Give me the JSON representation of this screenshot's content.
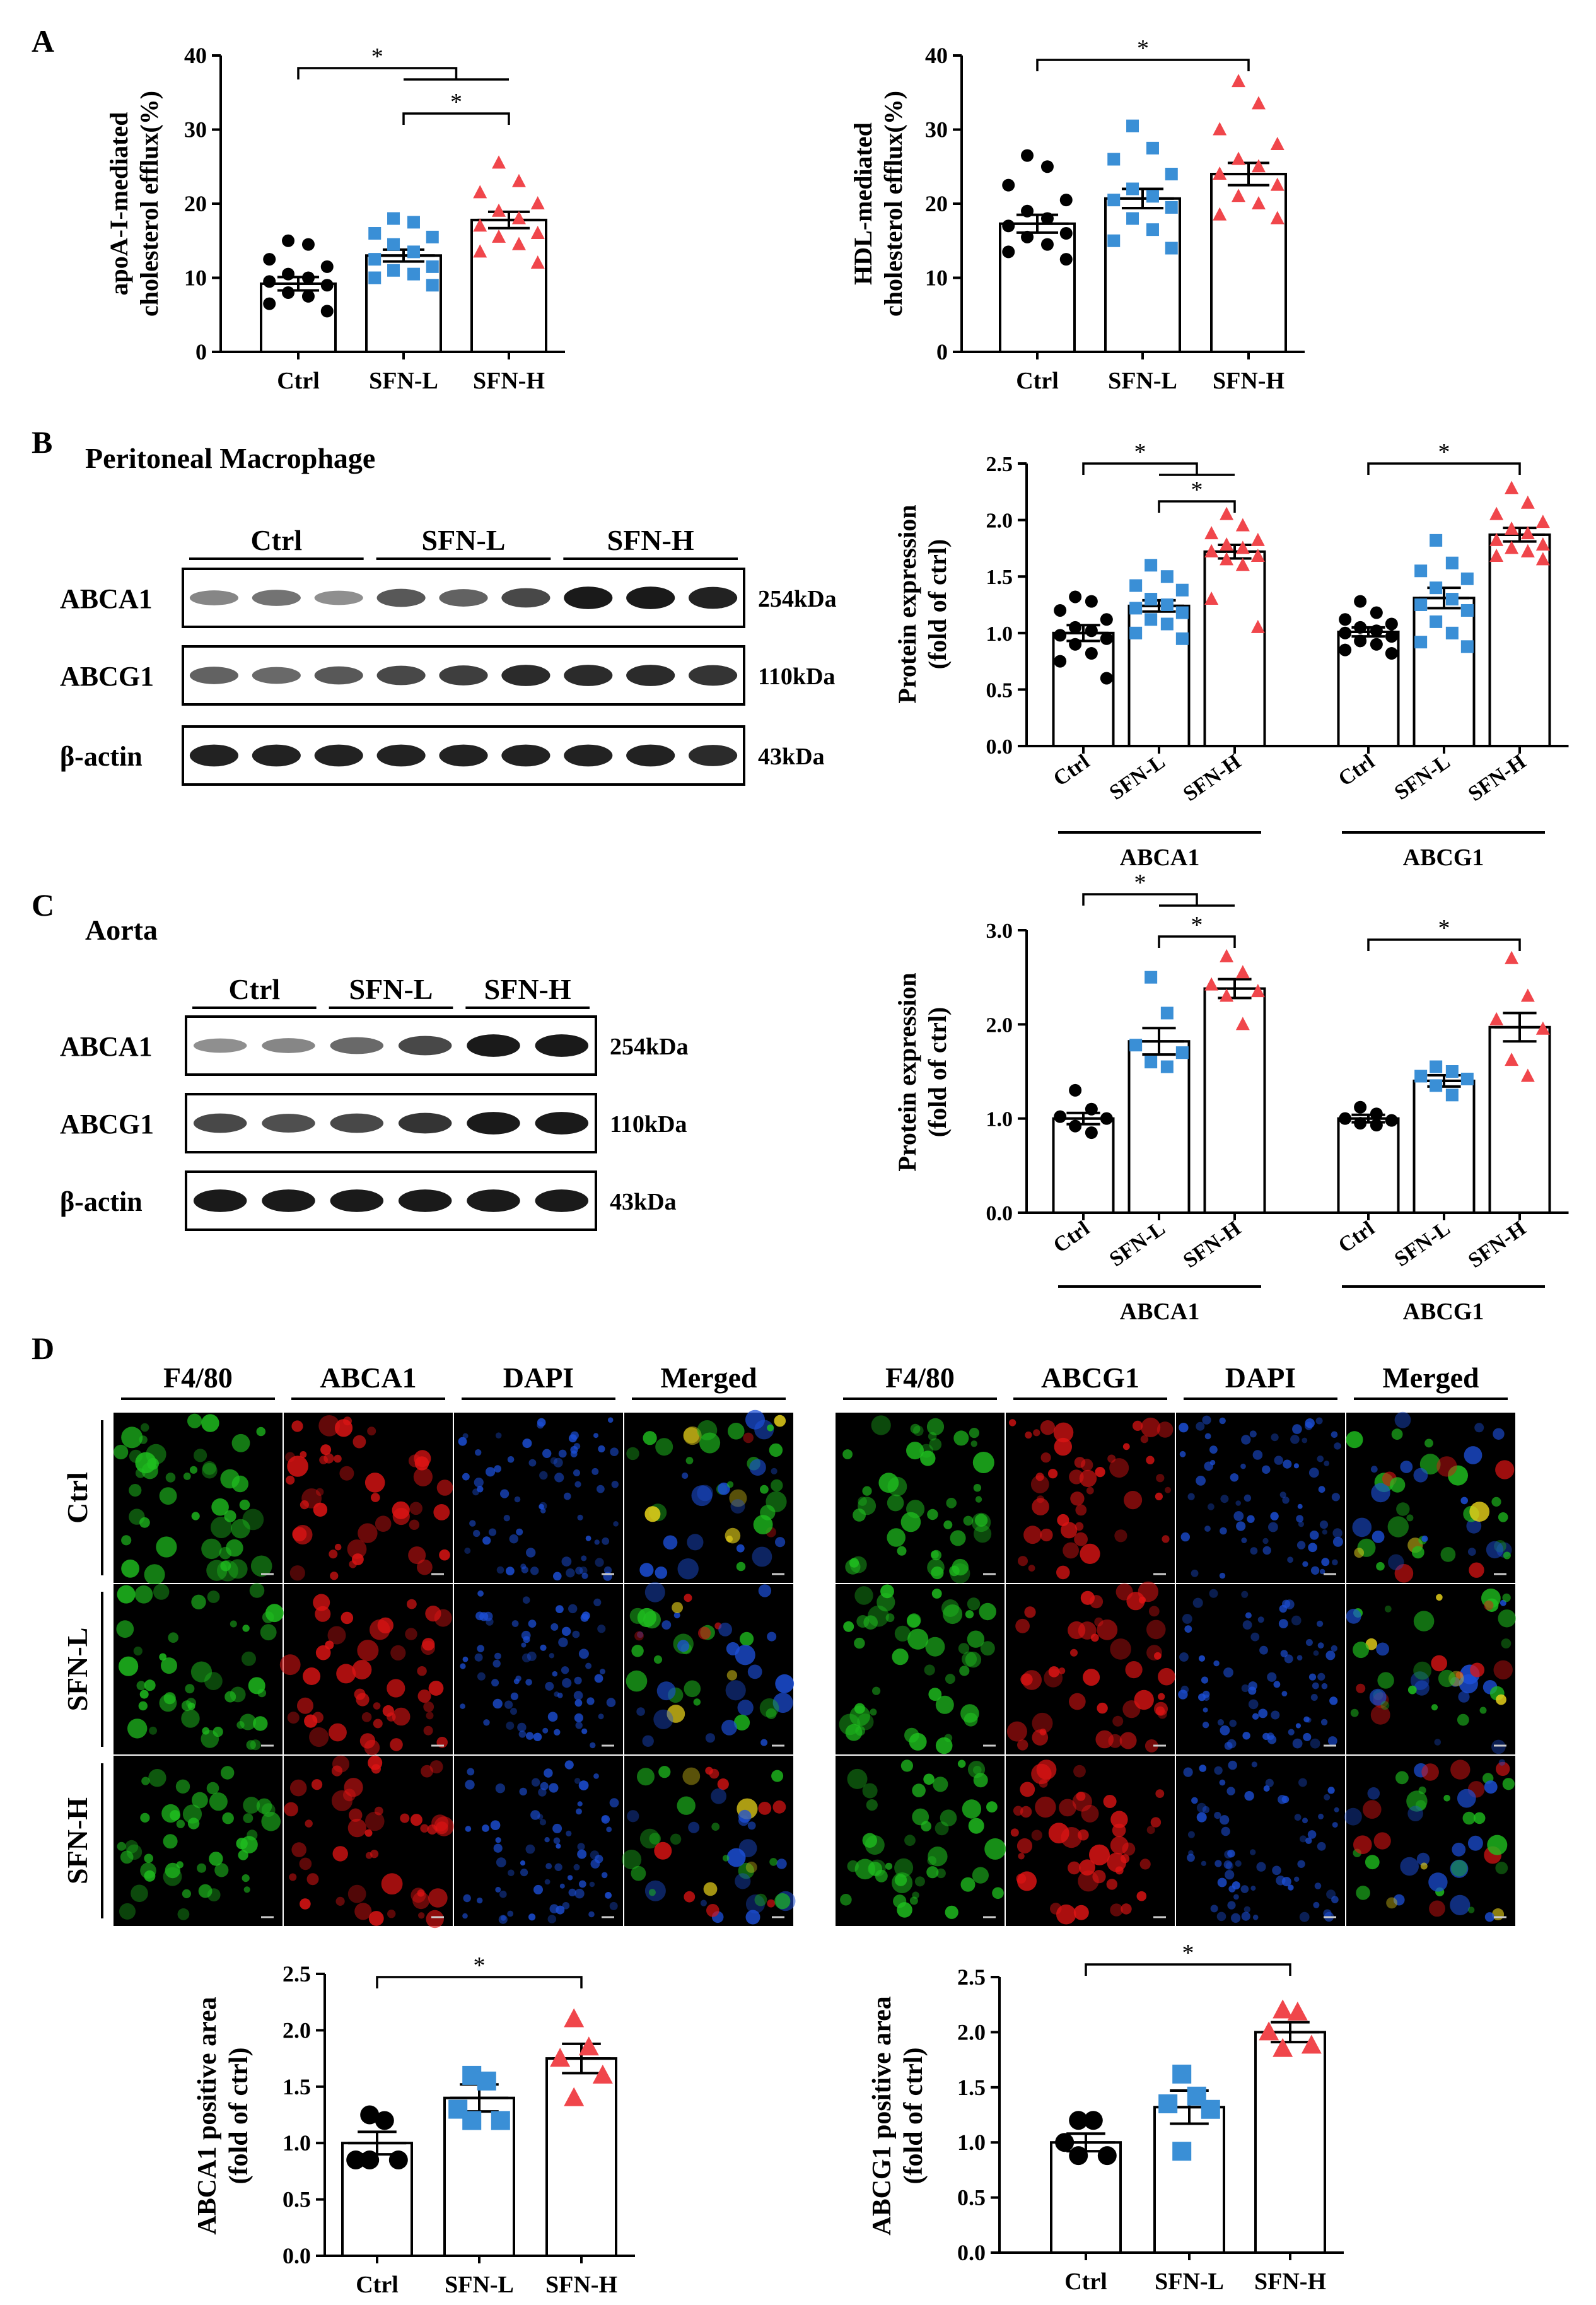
{
  "panel_letters": [
    "A",
    "B",
    "C",
    "D"
  ],
  "colors": {
    "ctrl": "#000000",
    "sfn_l": "#3a8fd6",
    "sfn_h": "#f0464b",
    "sig": "#000000"
  },
  "panel_b": {
    "title": "Peritoneal Macrophage"
  },
  "panel_c": {
    "title": "Aorta"
  },
  "blot_b": {
    "groups": [
      "Ctrl",
      "SFN-L",
      "SFN-H"
    ],
    "rows": [
      "ABCA1",
      "ABCG1",
      "β-actin"
    ],
    "sizes": [
      "254kDa",
      "110kDa",
      "43kDa"
    ],
    "lanes_per_group": 3,
    "intensity": {
      "ABCA1": [
        0.35,
        0.45,
        0.3,
        0.6,
        0.55,
        0.7,
        0.95,
        0.95,
        0.9
      ],
      "ABCG1": [
        0.55,
        0.5,
        0.6,
        0.7,
        0.75,
        0.85,
        0.85,
        0.85,
        0.8
      ],
      "β-actin": [
        0.9,
        0.9,
        0.9,
        0.9,
        0.9,
        0.9,
        0.9,
        0.9,
        0.85
      ]
    }
  },
  "blot_c": {
    "groups": [
      "Ctrl",
      "SFN-L",
      "SFN-H"
    ],
    "rows": [
      "ABCA1",
      "ABCG1",
      "β-actin"
    ],
    "sizes": [
      "254kDa",
      "110kDa",
      "43kDa"
    ],
    "lanes_per_group": 2,
    "intensity": {
      "ABCA1": [
        0.3,
        0.35,
        0.5,
        0.7,
        0.95,
        0.95
      ],
      "ABCG1": [
        0.7,
        0.65,
        0.7,
        0.8,
        0.95,
        0.95
      ],
      "β-actin": [
        0.95,
        0.95,
        0.95,
        0.95,
        0.95,
        0.95
      ]
    }
  },
  "micro": {
    "left_headers": [
      "F4/80",
      "ABCA1",
      "DAPI",
      "Merged"
    ],
    "right_headers": [
      "F4/80",
      "ABCG1",
      "DAPI",
      "Merged"
    ],
    "row_labels": [
      "Ctrl",
      "SFN-L",
      "SFN-H"
    ]
  },
  "chart_data": [
    {
      "id": "A_left",
      "type": "bar",
      "categories": [
        "Ctrl",
        "SFN-L",
        "SFN-H"
      ],
      "means": [
        9.2,
        13.0,
        17.8
      ],
      "sem": [
        0.9,
        0.8,
        1.1
      ],
      "points": [
        [
          15,
          14.5,
          12.5,
          11.5,
          10.5,
          10,
          9.5,
          9,
          8,
          7.5,
          6.5,
          5.5
        ],
        [
          18,
          17.5,
          16,
          15.5,
          14.5,
          13.5,
          12.5,
          11.5,
          11,
          10.5,
          10,
          9
        ],
        [
          25.5,
          23,
          21.5,
          20,
          19,
          18,
          17,
          16,
          15.5,
          14.5,
          13.5,
          12
        ]
      ],
      "ylim": [
        0,
        40
      ],
      "yticks": [
        0,
        10,
        20,
        30,
        40
      ],
      "ytick_labels": [
        "0",
        "10",
        "20",
        "30",
        "40"
      ],
      "ylabel": [
        "apoA-I-mediated",
        "cholesterol efflux(%)"
      ],
      "significance": [
        "*",
        "*"
      ]
    },
    {
      "id": "A_right",
      "type": "bar",
      "categories": [
        "Ctrl",
        "SFN-L",
        "SFN-H"
      ],
      "means": [
        17.3,
        20.7,
        24.0
      ],
      "sem": [
        1.2,
        1.3,
        1.5
      ],
      "points": [
        [
          26.5,
          25,
          22.5,
          20.5,
          19,
          18,
          17,
          16,
          15.5,
          14.5,
          13.5,
          12.5
        ],
        [
          30.5,
          27.5,
          26,
          24,
          22,
          21,
          20.5,
          19.5,
          18,
          16.5,
          15,
          14
        ],
        [
          36.5,
          33.5,
          30,
          28,
          26,
          25,
          24,
          22.5,
          21,
          20,
          18.5,
          18
        ]
      ],
      "ylim": [
        0,
        40
      ],
      "yticks": [
        0,
        10,
        20,
        30,
        40
      ],
      "ytick_labels": [
        "0",
        "10",
        "20",
        "30",
        "40"
      ],
      "ylabel": [
        "HDL-mediated",
        "cholesterol efflux(%)"
      ],
      "significance": [
        "*"
      ]
    },
    {
      "id": "B_chart",
      "type": "bar",
      "categories": [
        "Ctrl",
        "SFN-L",
        "SFN-H",
        "Ctrl",
        "SFN-L",
        "SFN-H"
      ],
      "groups": [
        "ABCA1",
        "ABCG1"
      ],
      "means": [
        1.0,
        1.24,
        1.72,
        1.01,
        1.31,
        1.87
      ],
      "sem": [
        0.07,
        0.05,
        0.06,
        0.04,
        0.09,
        0.06
      ],
      "points": [
        [
          1.32,
          1.28,
          1.2,
          1.12,
          1.05,
          1.02,
          0.98,
          0.95,
          0.9,
          0.82,
          0.75,
          0.6
        ],
        [
          1.6,
          1.5,
          1.42,
          1.38,
          1.3,
          1.25,
          1.22,
          1.18,
          1.12,
          1.08,
          1.0,
          0.95
        ],
        [
          2.05,
          1.95,
          1.88,
          1.82,
          1.78,
          1.75,
          1.72,
          1.68,
          1.65,
          1.6,
          1.3,
          1.05
        ],
        [
          1.28,
          1.18,
          1.12,
          1.08,
          1.05,
          1.02,
          1.0,
          0.97,
          0.93,
          0.9,
          0.85,
          0.82
        ],
        [
          1.82,
          1.62,
          1.55,
          1.48,
          1.4,
          1.3,
          1.25,
          1.2,
          1.1,
          1.0,
          0.92,
          0.88
        ],
        [
          2.28,
          2.15,
          2.05,
          1.98,
          1.92,
          1.88,
          1.82,
          1.78,
          1.75,
          1.72,
          1.68,
          1.65
        ]
      ],
      "ylim": [
        0,
        2.5
      ],
      "yticks": [
        0,
        0.5,
        1.0,
        1.5,
        2.0,
        2.5
      ],
      "ytick_labels": [
        "0.0",
        "0.5",
        "1.0",
        "1.5",
        "2.0",
        "2.5"
      ],
      "ylabel": [
        "Protein expression",
        "(fold of ctrl)"
      ],
      "significance": [
        "*",
        "*",
        "*"
      ]
    },
    {
      "id": "C_chart",
      "type": "bar",
      "categories": [
        "Ctrl",
        "SFN-L",
        "SFN-H",
        "Ctrl",
        "SFN-L",
        "SFN-H"
      ],
      "groups": [
        "ABCA1",
        "ABCG1"
      ],
      "means": [
        1.0,
        1.82,
        2.38,
        1.0,
        1.4,
        1.97
      ],
      "sem": [
        0.06,
        0.14,
        0.1,
        0.04,
        0.06,
        0.15
      ],
      "points": [
        [
          1.3,
          1.1,
          1.02,
          1.0,
          0.92,
          0.85
        ],
        [
          2.5,
          2.12,
          1.78,
          1.7,
          1.6,
          1.55
        ],
        [
          2.72,
          2.55,
          2.42,
          2.35,
          2.3,
          2.0
        ],
        [
          1.12,
          1.05,
          1.0,
          0.98,
          0.95,
          0.93
        ],
        [
          1.55,
          1.5,
          1.45,
          1.42,
          1.35,
          1.25
        ],
        [
          2.7,
          2.3,
          2.05,
          1.95,
          1.62,
          1.45
        ]
      ],
      "ylim": [
        0,
        3.0
      ],
      "yticks": [
        0,
        1.0,
        2.0,
        3.0
      ],
      "ytick_labels": [
        "0.0",
        "1.0",
        "2.0",
        "3.0"
      ],
      "ylabel": [
        "Protein expression",
        "(fold of ctrl)"
      ],
      "significance": [
        "*",
        "*",
        "*"
      ]
    },
    {
      "id": "D_left",
      "type": "bar",
      "categories": [
        "Ctrl",
        "SFN-L",
        "SFN-H"
      ],
      "means": [
        1.0,
        1.4,
        1.75
      ],
      "sem": [
        0.1,
        0.12,
        0.13
      ],
      "points": [
        [
          1.25,
          1.2,
          0.85,
          0.85,
          0.85
        ],
        [
          1.6,
          1.55,
          1.3,
          1.2,
          1.2
        ],
        [
          2.1,
          1.85,
          1.75,
          1.6,
          1.4
        ]
      ],
      "ylim": [
        0,
        2.5
      ],
      "yticks": [
        0,
        0.5,
        1.0,
        1.5,
        2.0,
        2.5
      ],
      "ytick_labels": [
        "0.0",
        "0.5",
        "1.0",
        "1.5",
        "2.0",
        "2.5"
      ],
      "ylabel": [
        "ABCA1 positive area",
        "(fold of ctrl)"
      ],
      "significance": [
        "*"
      ]
    },
    {
      "id": "D_right",
      "type": "bar",
      "categories": [
        "Ctrl",
        "SFN-L",
        "SFN-H"
      ],
      "means": [
        1.0,
        1.32,
        2.0
      ],
      "sem": [
        0.08,
        0.15,
        0.09
      ],
      "points": [
        [
          1.2,
          1.2,
          1.0,
          0.88,
          0.88
        ],
        [
          1.62,
          1.42,
          1.35,
          1.3,
          0.92
        ],
        [
          2.2,
          2.18,
          2.0,
          1.88,
          1.85
        ]
      ],
      "ylim": [
        0,
        2.5
      ],
      "yticks": [
        0,
        0.5,
        1.0,
        1.5,
        2.0,
        2.5
      ],
      "ytick_labels": [
        "0.0",
        "0.5",
        "1.0",
        "1.5",
        "2.0",
        "2.5"
      ],
      "ylabel": [
        "ABCG1 positive area",
        "(fold of ctrl)"
      ],
      "significance": [
        "*"
      ]
    }
  ]
}
